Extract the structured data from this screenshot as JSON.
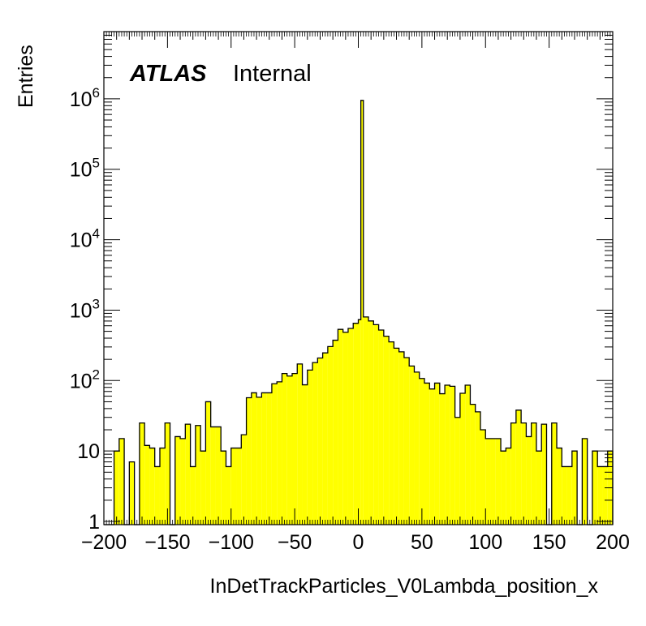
{
  "chart_data": {
    "type": "histogram",
    "title": "",
    "xlabel": "InDetTrackParticles_V0Lambda_position_x",
    "ylabel": "Entries",
    "label": {
      "experiment": "ATLAS",
      "status": "Internal"
    },
    "xlim": [
      -200,
      200
    ],
    "ylim": [
      0.9,
      9000000
    ],
    "yscale": "log",
    "grid": false,
    "fill_color": "#ffff00",
    "line_color": "#000000",
    "bin_width": 4,
    "x_ticks": [
      -200,
      -150,
      -100,
      -50,
      0,
      50,
      100,
      150,
      200
    ],
    "x_tick_labels": [
      "−200",
      "−150",
      "−100",
      "−50",
      "0",
      "50",
      "100",
      "150",
      "200"
    ],
    "y_ticks": [
      1,
      10,
      100,
      1000,
      10000,
      100000,
      1000000
    ],
    "y_tick_labels": [
      {
        "base": "1",
        "exp": ""
      },
      {
        "base": "10",
        "exp": ""
      },
      {
        "base": "10",
        "exp": "2"
      },
      {
        "base": "10",
        "exp": "3"
      },
      {
        "base": "10",
        "exp": "4"
      },
      {
        "base": "10",
        "exp": "5"
      },
      {
        "base": "10",
        "exp": "6"
      }
    ],
    "bins": [
      {
        "x": -200,
        "y": 0
      },
      {
        "x": -196,
        "y": 0
      },
      {
        "x": -192,
        "y": 10
      },
      {
        "x": -188,
        "y": 15
      },
      {
        "x": -184,
        "y": 0
      },
      {
        "x": -180,
        "y": 7
      },
      {
        "x": -176,
        "y": 0
      },
      {
        "x": -172,
        "y": 25
      },
      {
        "x": -168,
        "y": 12
      },
      {
        "x": -164,
        "y": 11
      },
      {
        "x": -160,
        "y": 6
      },
      {
        "x": -156,
        "y": 11
      },
      {
        "x": -152,
        "y": 25
      },
      {
        "x": -148,
        "y": 0
      },
      {
        "x": -144,
        "y": 16
      },
      {
        "x": -140,
        "y": 15
      },
      {
        "x": -136,
        "y": 24
      },
      {
        "x": -132,
        "y": 6
      },
      {
        "x": -128,
        "y": 23
      },
      {
        "x": -124,
        "y": 10
      },
      {
        "x": -120,
        "y": 50
      },
      {
        "x": -116,
        "y": 22
      },
      {
        "x": -112,
        "y": 22
      },
      {
        "x": -108,
        "y": 10
      },
      {
        "x": -104,
        "y": 6
      },
      {
        "x": -100,
        "y": 11
      },
      {
        "x": -96,
        "y": 11
      },
      {
        "x": -92,
        "y": 17
      },
      {
        "x": -88,
        "y": 57
      },
      {
        "x": -84,
        "y": 67
      },
      {
        "x": -80,
        "y": 58
      },
      {
        "x": -76,
        "y": 67
      },
      {
        "x": -72,
        "y": 67
      },
      {
        "x": -68,
        "y": 90
      },
      {
        "x": -64,
        "y": 96
      },
      {
        "x": -60,
        "y": 126
      },
      {
        "x": -56,
        "y": 116
      },
      {
        "x": -52,
        "y": 126
      },
      {
        "x": -48,
        "y": 172
      },
      {
        "x": -44,
        "y": 87
      },
      {
        "x": -40,
        "y": 141
      },
      {
        "x": -36,
        "y": 180
      },
      {
        "x": -32,
        "y": 209
      },
      {
        "x": -28,
        "y": 247
      },
      {
        "x": -24,
        "y": 304
      },
      {
        "x": -20,
        "y": 374
      },
      {
        "x": -16,
        "y": 533
      },
      {
        "x": -12,
        "y": 485
      },
      {
        "x": -8,
        "y": 550
      },
      {
        "x": -4,
        "y": 650
      },
      {
        "x": 0,
        "y": 733
      },
      {
        "x": 2,
        "y": 950000
      },
      {
        "x": 4,
        "y": 800
      },
      {
        "x": 8,
        "y": 702
      },
      {
        "x": 12,
        "y": 622
      },
      {
        "x": 16,
        "y": 522
      },
      {
        "x": 20,
        "y": 426
      },
      {
        "x": 24,
        "y": 354
      },
      {
        "x": 28,
        "y": 288
      },
      {
        "x": 32,
        "y": 256
      },
      {
        "x": 36,
        "y": 212
      },
      {
        "x": 40,
        "y": 161
      },
      {
        "x": 44,
        "y": 132
      },
      {
        "x": 48,
        "y": 107
      },
      {
        "x": 52,
        "y": 92
      },
      {
        "x": 56,
        "y": 76
      },
      {
        "x": 60,
        "y": 92
      },
      {
        "x": 64,
        "y": 65
      },
      {
        "x": 68,
        "y": 86
      },
      {
        "x": 72,
        "y": 83
      },
      {
        "x": 76,
        "y": 30
      },
      {
        "x": 80,
        "y": 66
      },
      {
        "x": 84,
        "y": 86
      },
      {
        "x": 88,
        "y": 46
      },
      {
        "x": 92,
        "y": 36
      },
      {
        "x": 96,
        "y": 20
      },
      {
        "x": 100,
        "y": 15
      },
      {
        "x": 104,
        "y": 15
      },
      {
        "x": 108,
        "y": 15
      },
      {
        "x": 112,
        "y": 10
      },
      {
        "x": 116,
        "y": 11
      },
      {
        "x": 120,
        "y": 25
      },
      {
        "x": 124,
        "y": 38
      },
      {
        "x": 128,
        "y": 25
      },
      {
        "x": 132,
        "y": 16
      },
      {
        "x": 136,
        "y": 25
      },
      {
        "x": 140,
        "y": 10
      },
      {
        "x": 144,
        "y": 24
      },
      {
        "x": 148,
        "y": 0
      },
      {
        "x": 152,
        "y": 25
      },
      {
        "x": 156,
        "y": 11
      },
      {
        "x": 160,
        "y": 6
      },
      {
        "x": 164,
        "y": 6
      },
      {
        "x": 168,
        "y": 10
      },
      {
        "x": 172,
        "y": 0
      },
      {
        "x": 176,
        "y": 15
      },
      {
        "x": 180,
        "y": 0
      },
      {
        "x": 184,
        "y": 10
      },
      {
        "x": 188,
        "y": 6
      },
      {
        "x": 192,
        "y": 6
      },
      {
        "x": 196,
        "y": 10
      }
    ]
  }
}
